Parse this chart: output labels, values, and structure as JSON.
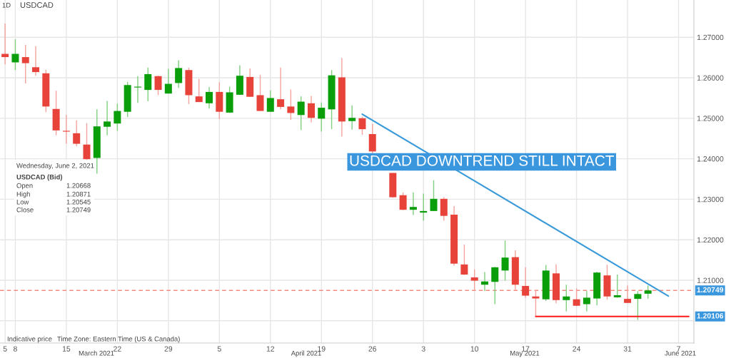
{
  "chart_data": {
    "type": "candlestick",
    "title": "USDCAD",
    "categories": [
      "5",
      "8",
      null,
      null,
      null,
      null,
      "15",
      null,
      null,
      null,
      null,
      "22",
      null,
      null,
      null,
      null,
      "29",
      null,
      null,
      null,
      null,
      "5",
      null,
      null,
      null,
      null,
      "12",
      null,
      null,
      null,
      null,
      "19",
      null,
      null,
      null,
      null,
      "26",
      null,
      null,
      null,
      null,
      "3",
      null,
      null,
      null,
      null,
      "10",
      null,
      null,
      null,
      null,
      "17",
      null,
      null,
      null,
      null,
      "24",
      null,
      null,
      null,
      null,
      "31",
      null,
      null,
      null,
      null,
      "7",
      null
    ],
    "ohlc": [
      [
        1.2659,
        1.2734,
        1.2633,
        1.2651
      ],
      [
        1.2638,
        1.2695,
        1.2619,
        1.2659
      ],
      [
        1.2651,
        1.2681,
        1.2586,
        1.2636
      ],
      [
        1.2626,
        1.2678,
        1.2605,
        1.2614
      ],
      [
        1.2611,
        1.262,
        1.2515,
        1.2529
      ],
      [
        1.2523,
        1.2568,
        1.2458,
        1.247
      ],
      [
        1.2469,
        1.2508,
        1.2437,
        1.2467
      ],
      [
        1.2463,
        1.2495,
        1.2431,
        1.2437
      ],
      [
        1.2435,
        1.2488,
        1.2395,
        1.2399
      ],
      [
        1.2402,
        1.2522,
        1.2363,
        1.248
      ],
      [
        1.2479,
        1.2543,
        1.2458,
        1.2492
      ],
      [
        1.2487,
        1.2536,
        1.2469,
        1.2518
      ],
      [
        1.2516,
        1.259,
        1.2503,
        1.2582
      ],
      [
        1.2576,
        1.2604,
        1.2538,
        1.2578
      ],
      [
        1.257,
        1.2625,
        1.2542,
        1.2609
      ],
      [
        1.2604,
        1.2605,
        1.2557,
        1.257
      ],
      [
        1.2561,
        1.2622,
        1.2561,
        1.2585
      ],
      [
        1.2587,
        1.2643,
        1.2575,
        1.2624
      ],
      [
        1.2619,
        1.2625,
        1.2535,
        1.2557
      ],
      [
        1.2554,
        1.2597,
        1.254,
        1.254
      ],
      [
        1.2537,
        1.2577,
        1.2524,
        1.2565
      ],
      [
        1.2565,
        1.2589,
        1.2498,
        1.2516
      ],
      [
        1.2514,
        1.2578,
        1.2513,
        1.2564
      ],
      [
        1.2558,
        1.2631,
        1.2558,
        1.2605
      ],
      [
        1.2602,
        1.2623,
        1.2553,
        1.2553
      ],
      [
        1.2557,
        1.2607,
        1.2518,
        1.2518
      ],
      [
        1.2516,
        1.2569,
        1.2516,
        1.255
      ],
      [
        1.2547,
        1.2625,
        1.2522,
        1.2528
      ],
      [
        1.2529,
        1.2571,
        1.2496,
        1.2513
      ],
      [
        1.2508,
        1.2554,
        1.2471,
        1.2541
      ],
      [
        1.2537,
        1.2555,
        1.249,
        1.2501
      ],
      [
        1.2499,
        1.2539,
        1.2467,
        1.2526
      ],
      [
        1.2522,
        1.2619,
        1.2473,
        1.2606
      ],
      [
        1.2601,
        1.2649,
        1.2455,
        1.2492
      ],
      [
        1.2493,
        1.2532,
        1.2472,
        1.2501
      ],
      [
        1.25,
        1.2504,
        1.2459,
        1.2473
      ],
      [
        1.2461,
        1.2486,
        1.2412,
        1.2418
      ],
      null,
      [
        1.2365,
        1.2365,
        1.2304,
        1.2305
      ],
      [
        1.231,
        1.2317,
        1.2273,
        1.2274
      ],
      [
        1.2274,
        1.2317,
        1.2261,
        1.2281
      ],
      [
        1.2267,
        1.2314,
        1.2247,
        1.2271
      ],
      [
        1.2271,
        1.2347,
        1.2271,
        1.2301
      ],
      [
        1.2301,
        1.2305,
        1.2247,
        1.2259
      ],
      [
        1.2262,
        1.2283,
        1.2136,
        1.2141
      ],
      [
        1.2139,
        1.2188,
        1.2113,
        1.2114
      ],
      [
        1.2107,
        1.2127,
        1.2074,
        1.2099
      ],
      [
        1.2089,
        1.212,
        1.2073,
        1.2097
      ],
      [
        1.2096,
        1.2133,
        1.2041,
        1.2132
      ],
      [
        1.2124,
        1.2198,
        1.2099,
        1.2156
      ],
      [
        1.2157,
        1.2174,
        1.2076,
        1.2089
      ],
      [
        1.2086,
        1.2132,
        1.2057,
        1.2062
      ],
      [
        1.206,
        1.2076,
        1.2011,
        1.2055
      ],
      [
        1.2053,
        1.2138,
        1.2049,
        1.2124
      ],
      [
        1.2117,
        1.2139,
        1.2043,
        1.2051
      ],
      [
        1.2051,
        1.2089,
        1.2023,
        1.206
      ],
      [
        1.2053,
        1.208,
        1.2036,
        1.2037
      ],
      [
        1.2041,
        1.2073,
        1.2023,
        1.2057
      ],
      [
        1.2055,
        1.2121,
        1.2038,
        1.2119
      ],
      [
        1.2112,
        1.2138,
        1.2052,
        1.206
      ],
      [
        1.2058,
        1.2114,
        1.2057,
        1.2063
      ],
      [
        1.2054,
        1.2087,
        1.2044,
        1.2044
      ],
      [
        1.2054,
        1.2073,
        1.2002,
        1.2066
      ],
      [
        1.20668,
        1.20871,
        1.20545,
        1.20749
      ],
      null,
      null,
      null,
      null
    ],
    "series": [
      {
        "type": "line",
        "color": "#3a9ad9",
        "values": [
          null,
          null,
          null,
          null,
          null,
          null,
          null,
          null,
          null,
          null,
          null,
          null,
          null,
          null,
          null,
          null,
          null,
          null,
          null,
          null,
          null,
          null,
          null,
          null,
          null,
          null,
          null,
          null,
          null,
          null,
          null,
          null,
          null,
          null,
          null,
          1.251,
          null,
          null,
          null,
          null,
          null,
          null,
          null,
          null,
          null,
          null,
          null,
          null,
          null,
          null,
          null,
          null,
          null,
          null,
          null,
          null,
          null,
          null,
          null,
          null,
          null,
          null,
          null,
          null,
          null,
          1.2061,
          null,
          null
        ]
      },
      {
        "type": "line",
        "color": "#ff1a1a",
        "values": [
          null,
          null,
          null,
          null,
          null,
          null,
          null,
          null,
          null,
          null,
          null,
          null,
          null,
          null,
          null,
          null,
          null,
          null,
          null,
          null,
          null,
          null,
          null,
          null,
          null,
          null,
          null,
          null,
          null,
          null,
          null,
          null,
          null,
          null,
          null,
          null,
          null,
          null,
          null,
          null,
          null,
          null,
          null,
          null,
          null,
          null,
          null,
          null,
          null,
          null,
          null,
          null,
          1.20106,
          1.20106,
          1.20106,
          1.20106,
          1.20106,
          1.20106,
          1.20106,
          1.20106,
          1.20106,
          1.20106,
          1.20106,
          1.20106,
          1.20106,
          1.20106,
          1.20106,
          1.20106
        ]
      }
    ],
    "ylim": [
      1.1945,
      1.2792
    ],
    "yticks": [
      {
        "value": 1.2,
        "label": null
      },
      {
        "value": 1.21,
        "label": "1.21000"
      },
      {
        "value": 1.22,
        "label": "1.22000"
      },
      {
        "value": 1.23,
        "label": "1.23000"
      },
      {
        "value": 1.24,
        "label": "1.24000"
      },
      {
        "value": 1.25,
        "label": "1.25000"
      },
      {
        "value": 1.26,
        "label": "1.26000"
      },
      {
        "value": 1.27,
        "label": "1.27000"
      }
    ],
    "ref_lines": [
      {
        "axis": "y",
        "value": 1.20749,
        "label": "1.20749",
        "color": "#f28b82",
        "line_style": "dashed"
      }
    ],
    "grid": true,
    "annotations": [
      "1D",
      "Wednesday, June 2, 2021",
      "USDCAD (Bid)",
      "Open",
      "1.20668",
      "High",
      "1.20871",
      "Low",
      "1.20545",
      "Close",
      "1.20749",
      "Indicative price",
      "Time Zone: Eastern Time (US & Canada)",
      "March 2021",
      "April 2021",
      "May 2021",
      "June 2021",
      "USDCAD DOWNTREND STILL INTACT",
      {
        "text": "1.20106",
        "y": 1.20106
      }
    ]
  }
}
